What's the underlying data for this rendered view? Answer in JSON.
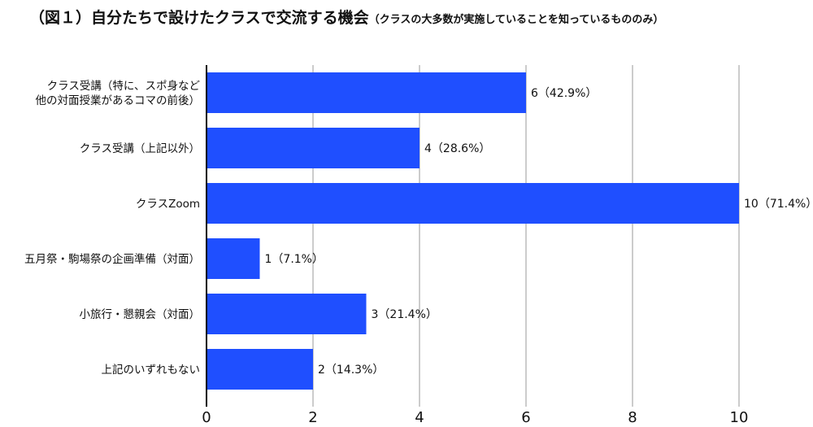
{
  "chart_data": {
    "type": "bar",
    "orientation": "horizontal",
    "title": "（図１）自分たちで設けたクラスで交流する機会",
    "subtitle": "（クラスの大多数が実施していることを知っているもののみ）",
    "categories": [
      [
        "クラス受講（特に、スポ身など",
        "他の対面授業があるコマの前後）"
      ],
      [
        "クラス受講（上記以外）"
      ],
      [
        "クラスZoom"
      ],
      [
        "五月祭・駒場祭の企画準備（対面）"
      ],
      [
        "小旅行・懇親会（対面）"
      ],
      [
        "上記のいずれもない"
      ]
    ],
    "values": [
      6,
      4,
      10,
      1,
      3,
      2
    ],
    "data_labels": [
      "6（42.9%）",
      "4（28.6%）",
      "10（71.4%）",
      "1（7.1%）",
      "3（21.4%）",
      "2（14.3%）"
    ],
    "xlim": [
      0,
      10
    ],
    "xticks": [
      0,
      2,
      4,
      6,
      8,
      10
    ],
    "grid": true,
    "bar_color": "#1f4fff",
    "grid_color": "#9a9a9a",
    "axis_color": "#000000"
  }
}
